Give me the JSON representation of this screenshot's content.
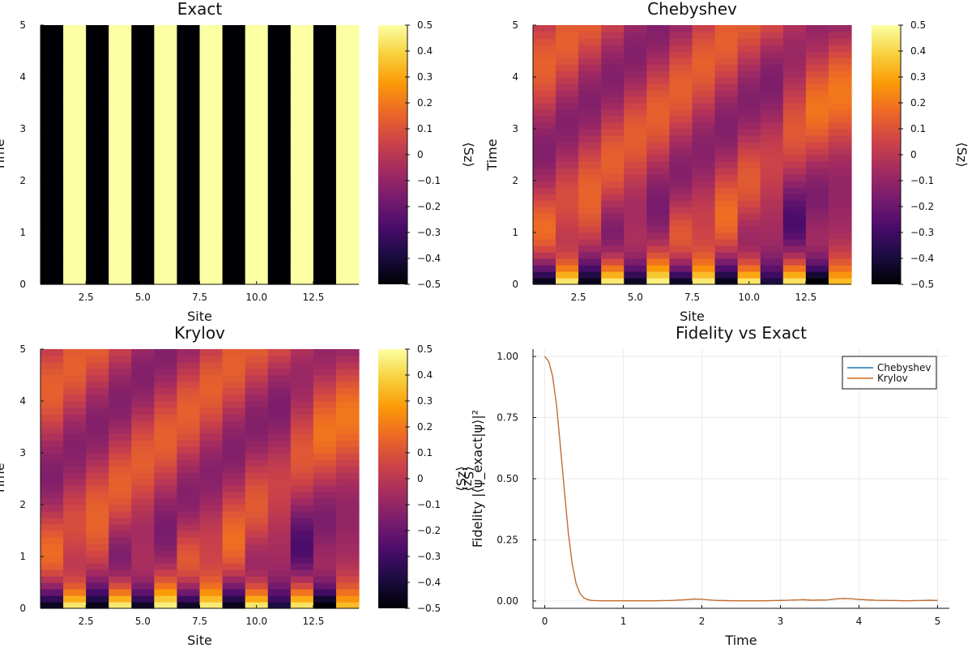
{
  "colors": {
    "inferno": [
      "#000004",
      "#1b0c41",
      "#4a0c6b",
      "#781c6d",
      "#a52c60",
      "#cf4446",
      "#ed6925",
      "#fb9b06",
      "#f7d13d",
      "#fcffa4"
    ],
    "chebyshev": "#1f77b4",
    "krylov": "#d2691e",
    "axis": "#111111",
    "grid": "#ebebeb"
  },
  "chart_data": [
    {
      "type": "heatmap",
      "title": "Exact",
      "xlabel": "Site",
      "ylabel": "Time",
      "colorbar_label": "⟨Sz⟩",
      "x_sites": [
        1,
        2,
        3,
        4,
        5,
        6,
        7,
        8,
        9,
        10,
        11,
        12,
        13,
        14
      ],
      "xlim": [
        0.5,
        14.5
      ],
      "ylim": [
        0,
        5
      ],
      "xticks": [
        "2.5",
        "5.0",
        "7.5",
        "10.0",
        "12.5"
      ],
      "yticks": [
        "0",
        "1",
        "2",
        "3",
        "4",
        "5"
      ],
      "clim": [
        -0.5,
        0.5
      ],
      "cticks": [
        "0.5",
        "0.4",
        "0.3",
        "0.2",
        "0.1",
        "0",
        "−0.1",
        "−0.2",
        "−0.3",
        "−0.4",
        "−0.5"
      ],
      "pattern": "constant Néel state: odd sites −0.5, even sites +0.5 for all times"
    },
    {
      "type": "heatmap",
      "title": "Chebyshev",
      "xlabel": "Site",
      "ylabel": "Time",
      "colorbar_label": "⟨Sz⟩",
      "x_sites": [
        1,
        2,
        3,
        4,
        5,
        6,
        7,
        8,
        9,
        10,
        11,
        12,
        13,
        14
      ],
      "xlim": [
        0.5,
        14.5
      ],
      "ylim": [
        0,
        5
      ],
      "xticks": [
        "2.5",
        "5.0",
        "7.5",
        "10.0",
        "12.5"
      ],
      "yticks": [
        "0",
        "1",
        "2",
        "3",
        "4",
        "5"
      ],
      "clim": [
        -0.5,
        0.5
      ],
      "cticks": [
        "0.5",
        "0.4",
        "0.3",
        "0.2",
        "0.1",
        "0",
        "−0.1",
        "−0.2",
        "−0.3",
        "−0.4",
        "−0.5"
      ],
      "pattern": "starts from Néel state at t=0, alternation decays toward ~0 with lightcone oscillations"
    },
    {
      "type": "heatmap",
      "title": "Krylov",
      "xlabel": "Site",
      "ylabel": "Time",
      "colorbar_label": "⟨Sz⟩",
      "x_sites": [
        1,
        2,
        3,
        4,
        5,
        6,
        7,
        8,
        9,
        10,
        11,
        12,
        13,
        14
      ],
      "xlim": [
        0.5,
        14.5
      ],
      "ylim": [
        0,
        5
      ],
      "xticks": [
        "2.5",
        "5.0",
        "7.5",
        "10.0",
        "12.5"
      ],
      "yticks": [
        "0",
        "1",
        "2",
        "3",
        "4",
        "5"
      ],
      "clim": [
        -0.5,
        0.5
      ],
      "cticks": [
        "0.5",
        "0.4",
        "0.3",
        "0.2",
        "0.1",
        "0",
        "−0.1",
        "−0.2",
        "−0.3",
        "−0.4",
        "−0.5"
      ],
      "pattern": "visually identical to Chebyshev"
    },
    {
      "type": "line",
      "title": "Fidelity vs Exact",
      "xlabel": "Time",
      "ylabel": "Fidelity |⟨ψ_exact|ψ⟩|²",
      "ylabel_extra": "⟨Sz⟩",
      "xlim": [
        -0.15,
        5.15
      ],
      "ylim": [
        -0.03,
        1.03
      ],
      "xticks": [
        0,
        1,
        2,
        3,
        4,
        5
      ],
      "yticks": [
        0,
        0.25,
        0.5,
        0.75,
        1.0
      ],
      "ytick_labels": [
        "0.00",
        "0.25",
        "0.50",
        "0.75",
        "1.00"
      ],
      "grid": true,
      "legend": "top-right",
      "series": [
        {
          "name": "Chebyshev",
          "x": [
            0,
            0.05,
            0.1,
            0.15,
            0.2,
            0.25,
            0.3,
            0.35,
            0.4,
            0.45,
            0.5,
            0.55,
            0.6,
            0.7,
            0.8,
            1.0,
            1.2,
            1.4,
            1.6,
            1.8,
            1.9,
            2.0,
            2.1,
            2.2,
            2.4,
            2.6,
            2.8,
            3.0,
            3.2,
            3.3,
            3.4,
            3.6,
            3.7,
            3.8,
            3.9,
            4.0,
            4.2,
            4.4,
            4.6,
            4.8,
            4.9,
            5.0
          ],
          "y": [
            1.0,
            0.98,
            0.92,
            0.8,
            0.63,
            0.45,
            0.28,
            0.15,
            0.07,
            0.03,
            0.012,
            0.005,
            0.002,
            0.001,
            0.001,
            0.001,
            0.001,
            0.001,
            0.002,
            0.005,
            0.008,
            0.007,
            0.004,
            0.002,
            0.001,
            0.001,
            0.001,
            0.002,
            0.004,
            0.005,
            0.003,
            0.004,
            0.008,
            0.01,
            0.009,
            0.006,
            0.003,
            0.002,
            0.001,
            0.002,
            0.003,
            0.002
          ]
        },
        {
          "name": "Krylov",
          "x": [
            0,
            0.05,
            0.1,
            0.15,
            0.2,
            0.25,
            0.3,
            0.35,
            0.4,
            0.45,
            0.5,
            0.55,
            0.6,
            0.7,
            0.8,
            1.0,
            1.2,
            1.4,
            1.6,
            1.8,
            1.9,
            2.0,
            2.1,
            2.2,
            2.4,
            2.6,
            2.8,
            3.0,
            3.2,
            3.3,
            3.4,
            3.6,
            3.7,
            3.8,
            3.9,
            4.0,
            4.2,
            4.4,
            4.6,
            4.8,
            4.9,
            5.0
          ],
          "y": [
            1.0,
            0.98,
            0.92,
            0.8,
            0.63,
            0.45,
            0.28,
            0.15,
            0.07,
            0.03,
            0.012,
            0.005,
            0.002,
            0.001,
            0.001,
            0.001,
            0.001,
            0.001,
            0.002,
            0.005,
            0.008,
            0.007,
            0.004,
            0.002,
            0.001,
            0.001,
            0.001,
            0.002,
            0.004,
            0.005,
            0.003,
            0.004,
            0.008,
            0.01,
            0.009,
            0.006,
            0.003,
            0.002,
            0.001,
            0.002,
            0.003,
            0.002
          ]
        }
      ]
    }
  ]
}
